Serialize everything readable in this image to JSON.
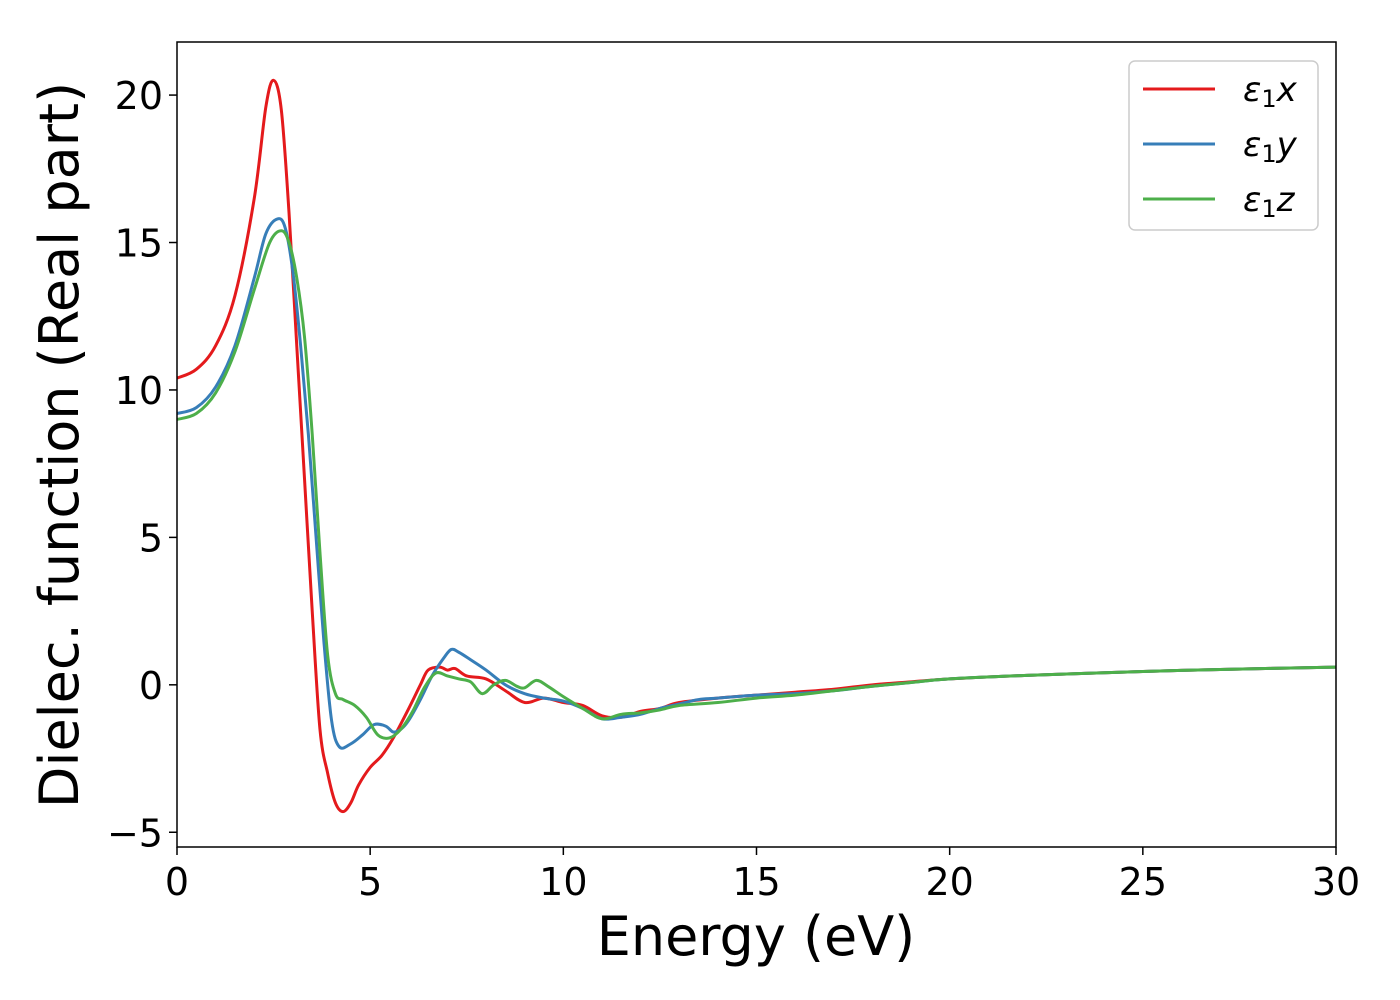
{
  "chart_data": {
    "type": "line",
    "title": "",
    "xlabel": "Energy (eV)",
    "ylabel": "Dielec. function (Real part)",
    "xlim": [
      0,
      30
    ],
    "ylim": [
      -5.5,
      21.8
    ],
    "xticks": [
      0,
      5,
      10,
      15,
      20,
      25,
      30
    ],
    "yticks": [
      -5,
      0,
      5,
      10,
      15,
      20
    ],
    "xtick_labels": [
      "0",
      "5",
      "10",
      "15",
      "20",
      "25",
      "30"
    ],
    "ytick_labels": [
      "−5",
      "0",
      "5",
      "10",
      "15",
      "20"
    ],
    "grid": false,
    "legend_position": "top-right",
    "series": [
      {
        "name": "ε₁x",
        "label_main": "ε",
        "label_sub": "1",
        "label_tail": "x",
        "color": "#e41a1c",
        "points": [
          [
            0,
            10.4
          ],
          [
            0.5,
            10.7
          ],
          [
            1.0,
            11.5
          ],
          [
            1.5,
            13.2
          ],
          [
            2.0,
            16.5
          ],
          [
            2.3,
            19.6
          ],
          [
            2.5,
            20.5
          ],
          [
            2.7,
            19.5
          ],
          [
            2.9,
            16.0
          ],
          [
            3.1,
            11.5
          ],
          [
            3.3,
            7.0
          ],
          [
            3.5,
            2.5
          ],
          [
            3.7,
            -1.5
          ],
          [
            3.9,
            -3.0
          ],
          [
            4.1,
            -4.0
          ],
          [
            4.3,
            -4.3
          ],
          [
            4.5,
            -4.0
          ],
          [
            4.7,
            -3.4
          ],
          [
            5.0,
            -2.8
          ],
          [
            5.3,
            -2.4
          ],
          [
            5.6,
            -1.8
          ],
          [
            6.0,
            -0.8
          ],
          [
            6.3,
            0.0
          ],
          [
            6.5,
            0.5
          ],
          [
            6.8,
            0.6
          ],
          [
            7.0,
            0.5
          ],
          [
            7.2,
            0.55
          ],
          [
            7.5,
            0.3
          ],
          [
            8.0,
            0.2
          ],
          [
            8.5,
            -0.2
          ],
          [
            9.0,
            -0.6
          ],
          [
            9.5,
            -0.45
          ],
          [
            10.0,
            -0.6
          ],
          [
            10.5,
            -0.7
          ],
          [
            11.0,
            -1.05
          ],
          [
            11.5,
            -1.1
          ],
          [
            12.0,
            -0.9
          ],
          [
            12.5,
            -0.8
          ],
          [
            13.0,
            -0.6
          ],
          [
            14.0,
            -0.45
          ],
          [
            15.0,
            -0.35
          ],
          [
            16.0,
            -0.25
          ],
          [
            17.0,
            -0.15
          ],
          [
            18.0,
            0.0
          ],
          [
            19.0,
            0.1
          ],
          [
            20.0,
            0.2
          ],
          [
            22.0,
            0.32
          ],
          [
            25.0,
            0.45
          ],
          [
            27.0,
            0.52
          ],
          [
            30.0,
            0.6
          ]
        ]
      },
      {
        "name": "ε₁y",
        "label_main": "ε",
        "label_sub": "1",
        "label_tail": "y",
        "color": "#377eb8",
        "points": [
          [
            0,
            9.2
          ],
          [
            0.5,
            9.4
          ],
          [
            1.0,
            10.1
          ],
          [
            1.5,
            11.5
          ],
          [
            2.0,
            13.8
          ],
          [
            2.3,
            15.3
          ],
          [
            2.6,
            15.8
          ],
          [
            2.8,
            15.5
          ],
          [
            3.0,
            14.0
          ],
          [
            3.2,
            11.5
          ],
          [
            3.4,
            8.5
          ],
          [
            3.6,
            5.0
          ],
          [
            3.8,
            1.5
          ],
          [
            4.0,
            -1.2
          ],
          [
            4.2,
            -2.1
          ],
          [
            4.5,
            -2.0
          ],
          [
            4.8,
            -1.7
          ],
          [
            5.1,
            -1.35
          ],
          [
            5.4,
            -1.4
          ],
          [
            5.6,
            -1.6
          ],
          [
            5.8,
            -1.5
          ],
          [
            6.0,
            -1.2
          ],
          [
            6.3,
            -0.5
          ],
          [
            6.6,
            0.3
          ],
          [
            6.9,
            0.9
          ],
          [
            7.1,
            1.2
          ],
          [
            7.3,
            1.1
          ],
          [
            7.6,
            0.85
          ],
          [
            8.0,
            0.5
          ],
          [
            8.5,
            0.0
          ],
          [
            9.0,
            -0.3
          ],
          [
            9.5,
            -0.45
          ],
          [
            10.0,
            -0.55
          ],
          [
            10.5,
            -0.8
          ],
          [
            11.0,
            -1.15
          ],
          [
            11.5,
            -1.1
          ],
          [
            12.0,
            -1.0
          ],
          [
            12.5,
            -0.8
          ],
          [
            13.0,
            -0.65
          ],
          [
            13.5,
            -0.5
          ],
          [
            14.0,
            -0.45
          ],
          [
            15.0,
            -0.35
          ],
          [
            16.0,
            -0.3
          ],
          [
            17.0,
            -0.2
          ],
          [
            18.0,
            -0.05
          ],
          [
            19.0,
            0.08
          ],
          [
            20.0,
            0.2
          ],
          [
            22.0,
            0.32
          ],
          [
            25.0,
            0.45
          ],
          [
            27.0,
            0.52
          ],
          [
            30.0,
            0.6
          ]
        ]
      },
      {
        "name": "ε₁z",
        "label_main": "ε",
        "label_sub": "1",
        "label_tail": "z",
        "color": "#4daf4a",
        "points": [
          [
            0,
            9.0
          ],
          [
            0.5,
            9.2
          ],
          [
            1.0,
            9.9
          ],
          [
            1.5,
            11.3
          ],
          [
            2.0,
            13.4
          ],
          [
            2.4,
            15.0
          ],
          [
            2.7,
            15.4
          ],
          [
            2.9,
            15.0
          ],
          [
            3.1,
            13.8
          ],
          [
            3.3,
            11.8
          ],
          [
            3.5,
            8.5
          ],
          [
            3.7,
            4.5
          ],
          [
            3.9,
            1.0
          ],
          [
            4.1,
            -0.3
          ],
          [
            4.3,
            -0.5
          ],
          [
            4.6,
            -0.7
          ],
          [
            4.9,
            -1.1
          ],
          [
            5.2,
            -1.7
          ],
          [
            5.5,
            -1.8
          ],
          [
            5.8,
            -1.5
          ],
          [
            6.1,
            -0.9
          ],
          [
            6.4,
            -0.1
          ],
          [
            6.7,
            0.4
          ],
          [
            7.0,
            0.3
          ],
          [
            7.3,
            0.2
          ],
          [
            7.6,
            0.1
          ],
          [
            7.9,
            -0.3
          ],
          [
            8.2,
            0.0
          ],
          [
            8.5,
            0.15
          ],
          [
            8.8,
            -0.05
          ],
          [
            9.0,
            -0.1
          ],
          [
            9.3,
            0.15
          ],
          [
            9.6,
            -0.05
          ],
          [
            10.0,
            -0.4
          ],
          [
            10.5,
            -0.8
          ],
          [
            11.0,
            -1.15
          ],
          [
            11.5,
            -1.0
          ],
          [
            12.0,
            -0.95
          ],
          [
            12.5,
            -0.85
          ],
          [
            13.0,
            -0.7
          ],
          [
            14.0,
            -0.6
          ],
          [
            15.0,
            -0.45
          ],
          [
            16.0,
            -0.35
          ],
          [
            17.0,
            -0.2
          ],
          [
            18.0,
            -0.05
          ],
          [
            19.0,
            0.08
          ],
          [
            20.0,
            0.2
          ],
          [
            22.0,
            0.32
          ],
          [
            25.0,
            0.45
          ],
          [
            27.0,
            0.52
          ],
          [
            30.0,
            0.6
          ]
        ]
      }
    ]
  }
}
